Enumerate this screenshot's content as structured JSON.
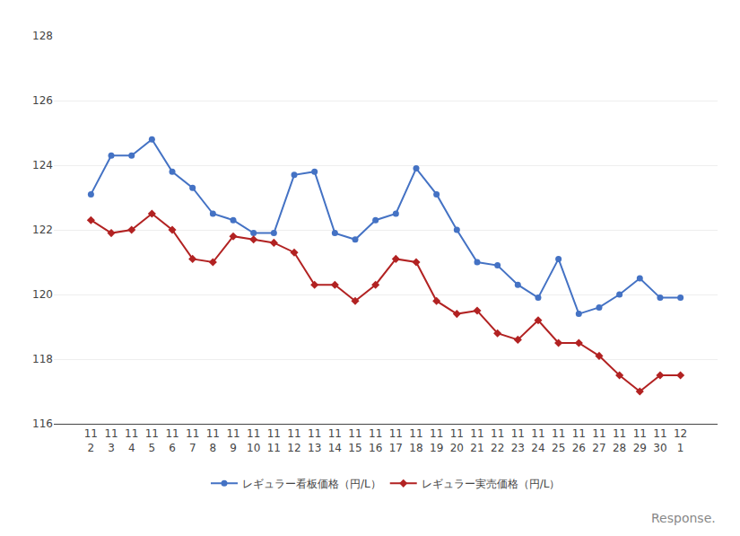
{
  "chart_data": {
    "type": "line",
    "categories": [
      "11\n2",
      "11\n3",
      "11\n4",
      "11\n5",
      "11\n6",
      "11\n7",
      "11\n8",
      "11\n9",
      "11\n10",
      "11\n11",
      "11\n12",
      "11\n13",
      "11\n14",
      "11\n15",
      "11\n16",
      "11\n17",
      "11\n18",
      "11\n19",
      "11\n20",
      "11\n21",
      "11\n22",
      "11\n23",
      "11\n24",
      "11\n25",
      "11\n26",
      "11\n27",
      "11\n28",
      "11\n29",
      "11\n30",
      "12\n1"
    ],
    "series": [
      {
        "name": "レギュラー看板価格（円/L）",
        "color": "#4472C4",
        "marker": "circle",
        "values": [
          123.1,
          124.3,
          124.3,
          124.8,
          123.8,
          123.3,
          122.5,
          122.3,
          121.9,
          121.9,
          123.7,
          123.8,
          121.9,
          121.7,
          122.3,
          122.5,
          123.9,
          123.1,
          122.0,
          121.0,
          120.9,
          120.3,
          119.9,
          121.1,
          119.4,
          119.6,
          120.0,
          120.5,
          119.9,
          119.9
        ]
      },
      {
        "name": "レギュラー実売価格（円/L）",
        "color": "#B22222",
        "marker": "diamond",
        "values": [
          122.3,
          121.9,
          122.0,
          122.5,
          122.0,
          121.1,
          121.0,
          121.8,
          121.7,
          121.6,
          121.3,
          120.3,
          120.3,
          119.8,
          120.3,
          121.1,
          121.0,
          119.8,
          119.4,
          119.5,
          118.8,
          118.6,
          119.2,
          118.5,
          118.5,
          118.1,
          117.5,
          117.0,
          117.5,
          117.5
        ]
      }
    ],
    "ylim": [
      116,
      128
    ],
    "yticks": [
      116,
      118,
      120,
      122,
      124,
      126,
      128
    ],
    "grid": true,
    "legend": "bottom",
    "annotations": [
      "Response."
    ]
  }
}
